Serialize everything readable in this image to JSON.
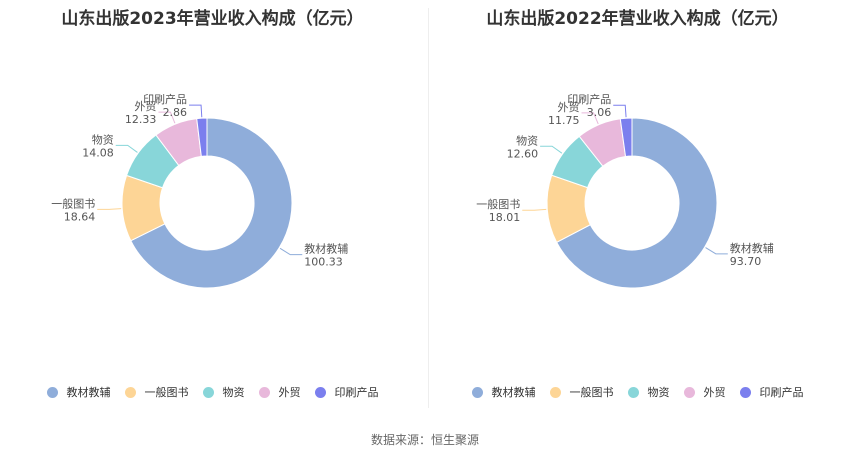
{
  "chart_data": [
    {
      "type": "pie",
      "title": "山东出版2023年营业收入构成（亿元）",
      "categories": [
        "教材教辅",
        "一般图书",
        "物资",
        "外贸",
        "印刷产品"
      ],
      "values": [
        100.33,
        18.64,
        14.08,
        12.33,
        2.86
      ],
      "value_labels": [
        "100.33",
        "18.64",
        "14.08",
        "12.33",
        "2.86"
      ],
      "legend_position": "bottom"
    },
    {
      "type": "pie",
      "title": "山东出版2022年营业收入构成（亿元）",
      "categories": [
        "教材教辅",
        "一般图书",
        "物资",
        "外贸",
        "印刷产品"
      ],
      "values": [
        93.7,
        18.01,
        12.6,
        11.75,
        3.06
      ],
      "value_labels": [
        "93.70",
        "18.01",
        "12.60",
        "11.75",
        "3.06"
      ],
      "legend_position": "bottom"
    }
  ],
  "colors": [
    "#8fadda",
    "#fdd596",
    "#88d6d9",
    "#e8b8db",
    "#7b7fee"
  ],
  "source": "数据来源：恒生聚源"
}
